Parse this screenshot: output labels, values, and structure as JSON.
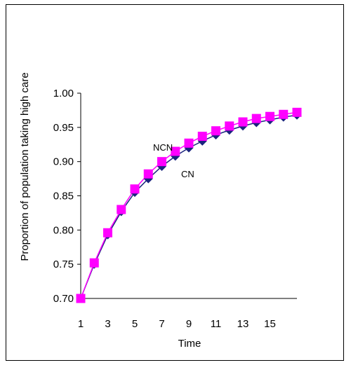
{
  "chart_data": {
    "type": "line",
    "title": "",
    "xlabel": "Time",
    "ylabel": "Proportion of population taking high care",
    "xlim": [
      1,
      17
    ],
    "ylim": [
      0.7,
      1.0
    ],
    "x_ticks": [
      "1",
      "3",
      "5",
      "7",
      "9",
      "11",
      "13",
      "15"
    ],
    "y_ticks": [
      "0.70",
      "0.75",
      "0.80",
      "0.85",
      "0.90",
      "0.95",
      "1.00"
    ],
    "grid": false,
    "legend": "none",
    "x": [
      1,
      2,
      3,
      4,
      5,
      6,
      7,
      8,
      9,
      10,
      11,
      12,
      13,
      14,
      15,
      16,
      17
    ],
    "series": [
      {
        "name": "CN",
        "color": "#1a237e",
        "marker": "diamond",
        "values": [
          0.7,
          0.75,
          0.793,
          0.827,
          0.855,
          0.875,
          0.893,
          0.908,
          0.92,
          0.93,
          0.939,
          0.946,
          0.952,
          0.957,
          0.961,
          0.965,
          0.968
        ]
      },
      {
        "name": "NCN",
        "color": "#ff00ff",
        "marker": "square",
        "values": [
          0.7,
          0.752,
          0.796,
          0.83,
          0.86,
          0.882,
          0.9,
          0.915,
          0.927,
          0.937,
          0.945,
          0.952,
          0.958,
          0.963,
          0.966,
          0.969,
          0.972
        ]
      }
    ],
    "annotations": [
      {
        "text": "NCN",
        "series": "NCN"
      },
      {
        "text": "CN",
        "series": "CN"
      }
    ]
  }
}
